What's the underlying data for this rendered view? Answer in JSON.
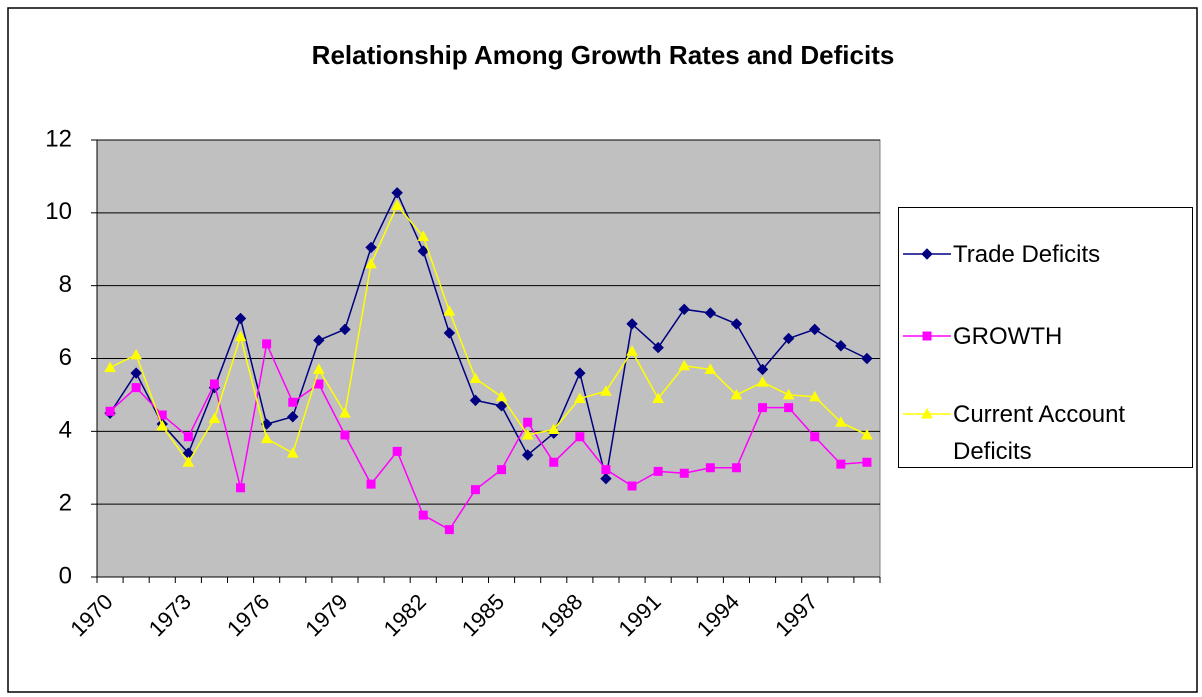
{
  "chart_data": {
    "type": "line",
    "title": "Relationship Among Growth Rates and Deficits",
    "categories": [
      "1970",
      null,
      null,
      "1973",
      null,
      null,
      "1976",
      null,
      null,
      "1979",
      null,
      null,
      "1982",
      null,
      null,
      "1985",
      null,
      null,
      "1988",
      null,
      null,
      "1991",
      null,
      null,
      "1994",
      null,
      null,
      "1997",
      null,
      null
    ],
    "series": [
      {
        "name": "Trade Deficits",
        "color": "#000080",
        "marker": "diamond",
        "values": [
          4.5,
          5.6,
          4.2,
          3.4,
          5.2,
          7.1,
          4.2,
          4.4,
          6.5,
          6.8,
          9.05,
          10.55,
          8.95,
          6.7,
          4.85,
          4.7,
          3.35,
          3.95,
          5.6,
          2.7,
          6.95,
          6.3,
          7.35,
          7.25,
          6.95,
          5.7,
          6.55,
          6.8,
          6.35,
          6.0
        ]
      },
      {
        "name": "GROWTH",
        "color": "#ff00ff",
        "marker": "square",
        "values": [
          4.55,
          5.2,
          4.45,
          3.85,
          5.3,
          2.45,
          6.4,
          4.8,
          5.3,
          3.9,
          2.55,
          3.45,
          1.7,
          1.3,
          2.4,
          2.95,
          4.25,
          3.15,
          3.85,
          2.95,
          2.5,
          2.9,
          2.85,
          3.0,
          3.0,
          4.65,
          4.65,
          3.85,
          3.1,
          3.15
        ]
      },
      {
        "name": "Current Account Deficits",
        "color": "#ffff00",
        "marker": "triangle",
        "values": [
          5.75,
          6.1,
          4.15,
          3.15,
          4.35,
          6.6,
          3.8,
          3.4,
          5.7,
          4.5,
          8.6,
          10.2,
          9.35,
          7.3,
          5.45,
          4.95,
          3.9,
          4.05,
          4.9,
          5.1,
          6.2,
          4.9,
          5.8,
          5.7,
          5.0,
          5.35,
          5.0,
          4.95,
          4.25,
          3.9
        ]
      }
    ],
    "ylim": [
      0,
      12
    ],
    "yticks": [
      0,
      2,
      4,
      6,
      8,
      10,
      12
    ],
    "grid": true,
    "plot_background": "#c0c0c0",
    "legend": "right"
  }
}
